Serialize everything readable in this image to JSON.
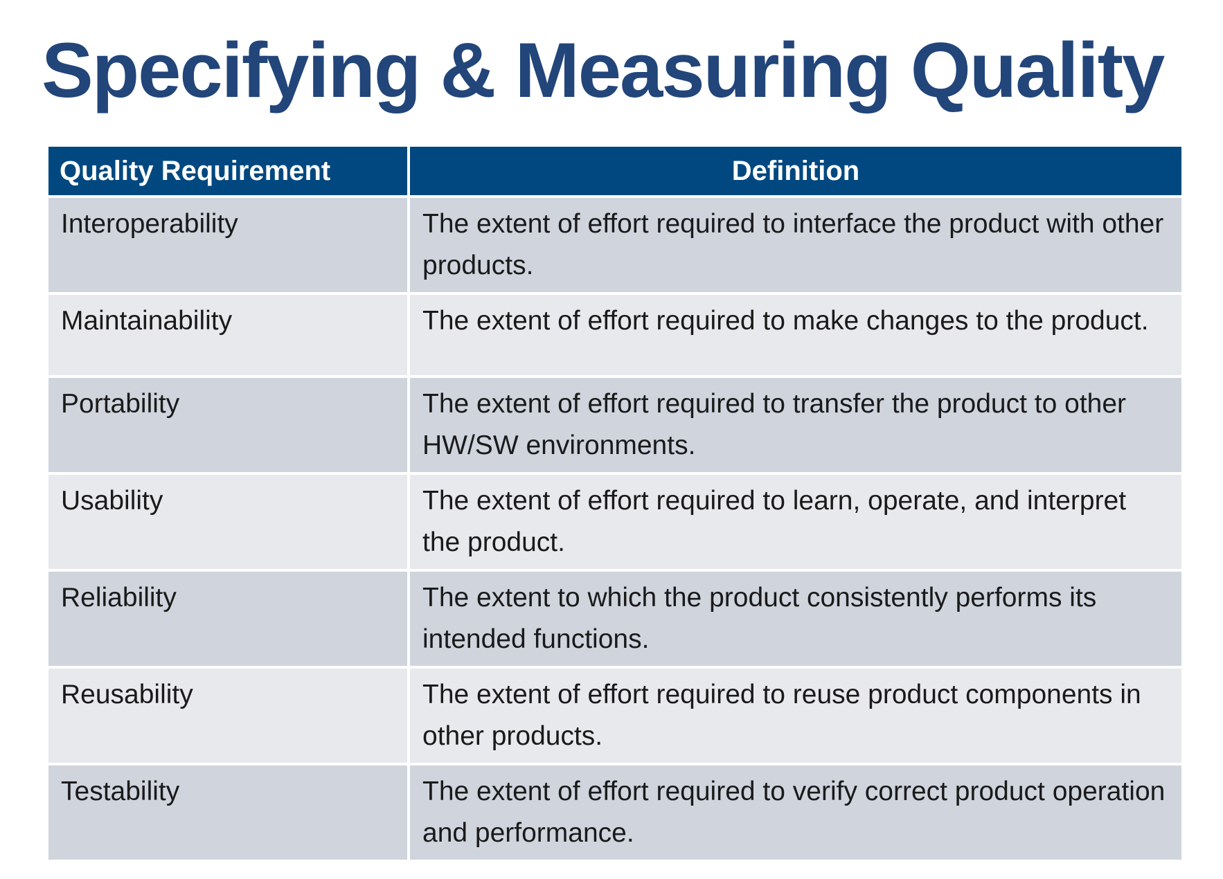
{
  "header": {
    "title": "Specifying & Measuring Quality"
  },
  "table": {
    "headers": [
      "Quality Requirement",
      "Definition"
    ],
    "rows": [
      [
        "Interoperability",
        "The extent of effort required to interface the product with other products."
      ],
      [
        "Maintainability",
        "The extent of effort required to make changes to the product."
      ],
      [
        "Portability",
        "The extent of effort required to transfer the product to other HW/SW environments."
      ],
      [
        "Usability",
        "The extent of effort required to learn, operate, and interpret the product."
      ],
      [
        "Reliability",
        "The extent to which the product consistently performs its intended functions."
      ],
      [
        "Reusability",
        "The extent of effort required to reuse product components in other products."
      ],
      [
        "Testability",
        "The extent of effort required to verify correct product operation and performance."
      ]
    ]
  }
}
